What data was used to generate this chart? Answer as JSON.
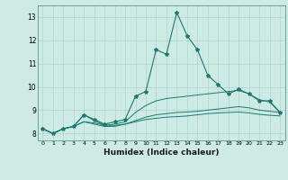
{
  "xlabel": "Humidex (Indice chaleur)",
  "ylabel": "",
  "background_color": "#ceeae5",
  "line_color": "#1a7a6e",
  "xlim": [
    -0.5,
    23.5
  ],
  "ylim": [
    7.7,
    13.5
  ],
  "xticks": [
    0,
    1,
    2,
    3,
    4,
    5,
    6,
    7,
    8,
    9,
    10,
    11,
    12,
    13,
    14,
    15,
    16,
    17,
    18,
    19,
    20,
    21,
    22,
    23
  ],
  "yticks": [
    8,
    9,
    10,
    11,
    12,
    13
  ],
  "series": [
    {
      "x": [
        0,
        1,
        2,
        3,
        4,
        5,
        6,
        7,
        8,
        9,
        10,
        11,
        12,
        13,
        14,
        15,
        16,
        17,
        18,
        19,
        20,
        21,
        22,
        23
      ],
      "y": [
        8.2,
        8.0,
        8.2,
        8.3,
        8.8,
        8.6,
        8.4,
        8.5,
        8.6,
        9.6,
        9.8,
        11.6,
        11.4,
        13.2,
        12.2,
        11.6,
        10.5,
        10.1,
        9.7,
        9.9,
        9.7,
        9.4,
        9.4,
        8.9
      ],
      "has_markers": true
    },
    {
      "x": [
        0,
        1,
        2,
        3,
        4,
        5,
        6,
        7,
        8,
        9,
        10,
        11,
        12,
        13,
        14,
        15,
        16,
        17,
        18,
        19,
        20,
        21,
        22,
        23
      ],
      "y": [
        8.2,
        8.0,
        8.2,
        8.3,
        8.8,
        8.55,
        8.35,
        8.4,
        8.5,
        8.9,
        9.2,
        9.4,
        9.5,
        9.55,
        9.6,
        9.65,
        9.7,
        9.75,
        9.8,
        9.85,
        9.7,
        9.45,
        9.35,
        8.9
      ],
      "has_markers": false
    },
    {
      "x": [
        0,
        1,
        2,
        3,
        4,
        5,
        6,
        7,
        8,
        9,
        10,
        11,
        12,
        13,
        14,
        15,
        16,
        17,
        18,
        19,
        20,
        21,
        22,
        23
      ],
      "y": [
        8.2,
        8.0,
        8.2,
        8.3,
        8.5,
        8.45,
        8.35,
        8.35,
        8.4,
        8.55,
        8.7,
        8.8,
        8.85,
        8.9,
        8.92,
        8.95,
        9.0,
        9.05,
        9.1,
        9.15,
        9.1,
        9.0,
        8.95,
        8.9
      ],
      "has_markers": false
    },
    {
      "x": [
        0,
        1,
        2,
        3,
        4,
        5,
        6,
        7,
        8,
        9,
        10,
        11,
        12,
        13,
        14,
        15,
        16,
        17,
        18,
        19,
        20,
        21,
        22,
        23
      ],
      "y": [
        8.2,
        8.0,
        8.2,
        8.3,
        8.5,
        8.4,
        8.3,
        8.3,
        8.4,
        8.5,
        8.6,
        8.65,
        8.7,
        8.72,
        8.75,
        8.8,
        8.85,
        8.88,
        8.9,
        8.92,
        8.88,
        8.82,
        8.78,
        8.75
      ],
      "has_markers": false
    }
  ]
}
